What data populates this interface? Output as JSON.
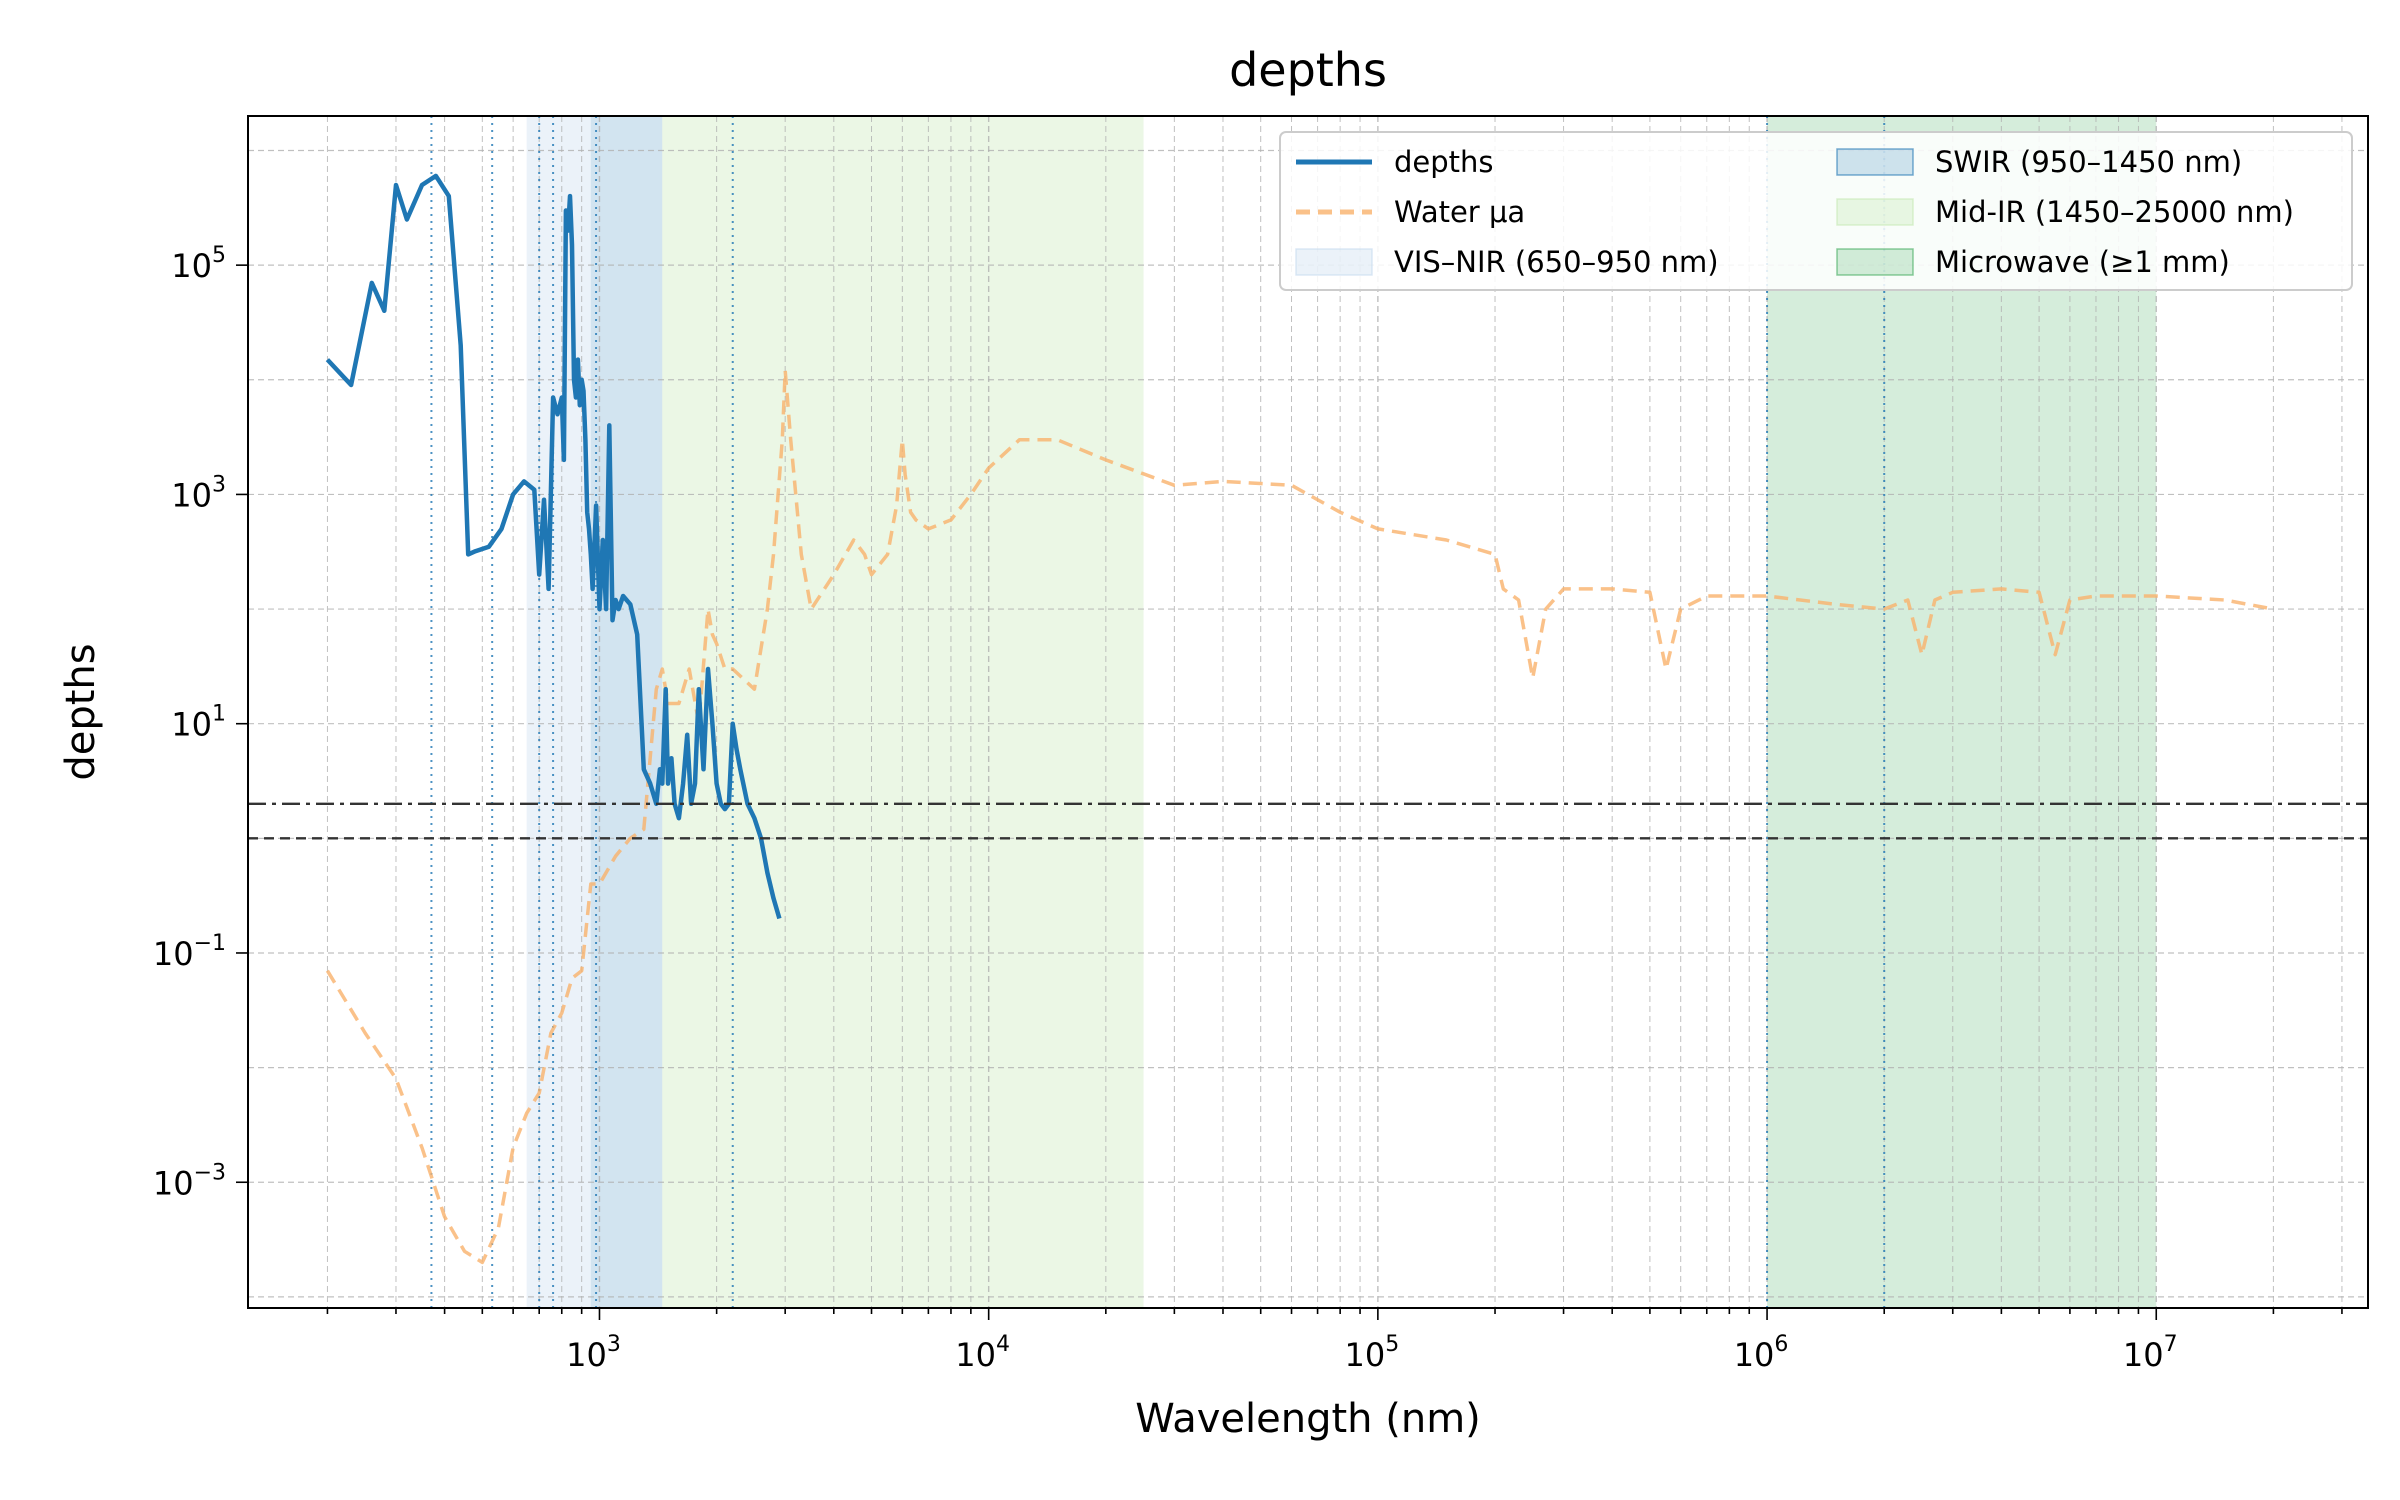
{
  "chart_data": {
    "type": "line",
    "title": "depths",
    "xlabel": "Wavelength (nm)",
    "ylabel": "depths",
    "xscale": "log",
    "yscale": "log",
    "xlim": [
      125,
      35000000
    ],
    "ylim": [
      8e-05,
      2000000
    ],
    "x_ticks": [
      {
        "base": "10",
        "exp": "3",
        "value": 1000
      },
      {
        "base": "10",
        "exp": "4",
        "value": 10000
      },
      {
        "base": "10",
        "exp": "5",
        "value": 100000
      },
      {
        "base": "10",
        "exp": "6",
        "value": 1000000
      },
      {
        "base": "10",
        "exp": "7",
        "value": 10000000
      }
    ],
    "y_ticks": [
      {
        "base": "10",
        "exp": "−3",
        "value": 0.001
      },
      {
        "base": "10",
        "exp": "−1",
        "value": 0.1
      },
      {
        "base": "10",
        "exp": "1",
        "value": 10
      },
      {
        "base": "10",
        "exp": "3",
        "value": 1000
      },
      {
        "base": "10",
        "exp": "5",
        "value": 100000
      }
    ],
    "grid": true,
    "legend_position": "top-right",
    "bands": [
      {
        "name": "VIS–NIR (650–950 nm)",
        "x0": 650,
        "x1": 950,
        "color": "#c6dbef",
        "opacity": 0.35
      },
      {
        "name": "SWIR (950–1450 nm)",
        "x0": 950,
        "x1": 1450,
        "color": "#1f77b4",
        "opacity": 0.2
      },
      {
        "name": "Mid-IR (1450–25000 nm)",
        "x0": 1450,
        "x1": 25000,
        "color": "#c7e9b4",
        "opacity": 0.35
      },
      {
        "name": "Microwave (≥1 mm)",
        "x0": 1000000,
        "x1": 10000000,
        "color": "#41ab5d",
        "opacity": 0.22
      }
    ],
    "reference_lines": [
      {
        "style": "dashdot",
        "y": 2.0
      },
      {
        "style": "dashed",
        "y": 1.0
      }
    ],
    "marker_lines_x": [
      370,
      530,
      700,
      760,
      980,
      2200,
      1000000,
      2000000
    ],
    "series": [
      {
        "name": "depths",
        "color": "#1f77b4",
        "style": "solid",
        "x": [
          200,
          230,
          260,
          280,
          300,
          320,
          350,
          380,
          410,
          440,
          460,
          480,
          520,
          560,
          600,
          640,
          680,
          700,
          720,
          740,
          760,
          780,
          800,
          810,
          820,
          830,
          840,
          850,
          860,
          870,
          880,
          890,
          900,
          910,
          920,
          930,
          940,
          950,
          960,
          980,
          1000,
          1020,
          1040,
          1060,
          1080,
          1100,
          1120,
          1150,
          1200,
          1250,
          1300,
          1350,
          1400,
          1430,
          1450,
          1480,
          1500,
          1530,
          1560,
          1600,
          1640,
          1680,
          1720,
          1760,
          1800,
          1850,
          1900,
          1950,
          2000,
          2050,
          2100,
          2150,
          2200,
          2250,
          2300,
          2400,
          2500,
          2600,
          2700,
          2800,
          2900
        ],
        "y": [
          15000,
          9000,
          70000,
          40000,
          500000,
          250000,
          500000,
          600000,
          400000,
          20000,
          300,
          320,
          350,
          500,
          1000,
          1300,
          1100,
          200,
          900,
          150,
          7000,
          5000,
          7000,
          2000,
          300000,
          200000,
          400000,
          150000,
          10000,
          7000,
          15000,
          6000,
          10000,
          8000,
          3000,
          700,
          500,
          300,
          150,
          800,
          100,
          400,
          100,
          4000,
          80,
          120,
          100,
          130,
          110,
          60,
          4,
          3,
          2,
          4,
          3,
          20,
          3,
          5,
          2,
          1.5,
          3,
          8,
          2,
          3,
          20,
          4,
          30,
          10,
          3,
          2,
          1.8,
          2,
          10,
          6,
          4,
          2,
          1.5,
          1,
          0.5,
          0.3,
          0.2
        ]
      },
      {
        "name": "Water μa",
        "color": "#f9b26b",
        "style": "dashed",
        "x": [
          200,
          250,
          300,
          350,
          400,
          450,
          500,
          550,
          600,
          650,
          700,
          750,
          800,
          850,
          900,
          950,
          1000,
          1100,
          1200,
          1300,
          1400,
          1450,
          1500,
          1600,
          1700,
          1800,
          1900,
          1950,
          2000,
          2100,
          2200,
          2500,
          2700,
          2800,
          2950,
          3000,
          3100,
          3300,
          3500,
          4000,
          4500,
          4800,
          5000,
          5500,
          5800,
          6000,
          6100,
          6300,
          6500,
          7000,
          8000,
          9000,
          10000,
          12000,
          15000,
          20000,
          30000,
          40000,
          60000,
          80000,
          100000,
          150000,
          200000,
          210000,
          230000,
          250000,
          270000,
          300000,
          400000,
          500000,
          550000,
          600000,
          700000,
          1000000,
          1500000,
          2000000,
          2300000,
          2500000,
          2700000,
          3000000,
          4000000,
          5000000,
          5500000,
          6000000,
          7000000,
          10000000,
          15000000,
          20000000
        ],
        "y": [
          0.07,
          0.02,
          0.008,
          0.002,
          0.0005,
          0.00025,
          0.0002,
          0.0004,
          0.002,
          0.004,
          0.006,
          0.02,
          0.03,
          0.06,
          0.07,
          0.4,
          0.4,
          0.7,
          1.0,
          1.2,
          20,
          30,
          15,
          15,
          30,
          10,
          100,
          60,
          50,
          30,
          30,
          20,
          100,
          300,
          3000,
          12000,
          3000,
          300,
          100,
          200,
          400,
          300,
          200,
          300,
          800,
          3000,
          1500,
          700,
          600,
          500,
          600,
          1000,
          1700,
          3000,
          3000,
          2000,
          1200,
          1300,
          1200,
          700,
          500,
          400,
          300,
          150,
          120,
          25,
          100,
          150,
          150,
          140,
          30,
          100,
          130,
          130,
          110,
          100,
          120,
          40,
          120,
          140,
          150,
          140,
          40,
          120,
          130,
          130,
          120,
          100
        ]
      }
    ]
  },
  "legend": {
    "items": [
      {
        "label": "depths",
        "kind": "line",
        "color": "#1f77b4",
        "dash": ""
      },
      {
        "label": "Water μa",
        "kind": "line",
        "color": "#f9b26b",
        "dash": "14,8"
      },
      {
        "label": "VIS–NIR (650–950 nm)",
        "kind": "patch",
        "color": "#c6dbef",
        "opacity": 0.35
      },
      {
        "label": "SWIR (950–1450 nm)",
        "kind": "patch",
        "color": "#1f77b4",
        "opacity": 0.2
      },
      {
        "label": "Mid-IR (1450–25000 nm)",
        "kind": "patch",
        "color": "#c7e9b4",
        "opacity": 0.35
      },
      {
        "label": "Microwave (≥1 mm)",
        "kind": "patch",
        "color": "#41ab5d",
        "opacity": 0.22
      }
    ]
  }
}
